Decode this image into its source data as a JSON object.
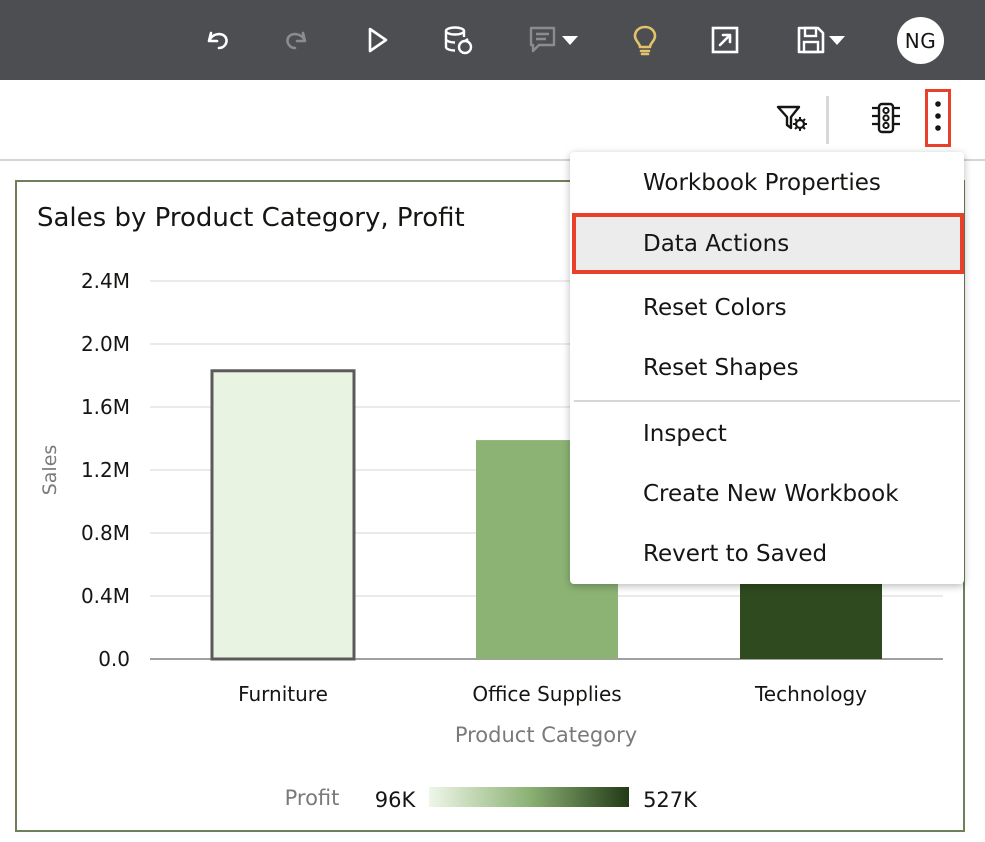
{
  "toolbar": {
    "icons": [
      "undo-icon",
      "redo-icon",
      "play-icon",
      "data-refresh-icon",
      "comment-icon",
      "lightbulb-icon",
      "export-icon",
      "save-icon"
    ],
    "avatar_initials": "NG",
    "colors": {
      "background": "#4c4e52",
      "icon": "#ffffff",
      "disabled_icon": "#8a8c90",
      "lightbulb": "#e2c26b"
    }
  },
  "subtoolbar": {
    "icons": [
      "filter-settings-icon",
      "traffic-light-icon",
      "kebab-menu-icon"
    ]
  },
  "visualization": {
    "title": "Sales by Product Category, Profit"
  },
  "chart_data": {
    "type": "bar",
    "title": "Sales by Product Category, Profit",
    "categories": [
      "Furniture",
      "Office Supplies",
      "Technology"
    ],
    "values": [
      1830000,
      1390000,
      1370000
    ],
    "color_values": [
      96000,
      250000,
      527000
    ],
    "ylabel": "Sales",
    "xlabel": "Product Category",
    "ylim": [
      0,
      2400000
    ],
    "yticks": [
      "0.0",
      "0.4M",
      "0.8M",
      "1.2M",
      "1.6M",
      "2.0M",
      "2.4M"
    ],
    "ytick_values": [
      0,
      400000,
      800000,
      1200000,
      1600000,
      2000000,
      2400000
    ],
    "legend": {
      "label": "Profit",
      "min": "96K",
      "max": "527K",
      "position": "bottom"
    },
    "bar_colors": [
      "#e9f3e2",
      "#8cb274",
      "#2e4a1e"
    ],
    "grid": true
  },
  "menu": {
    "items": [
      {
        "label": "Workbook Properties"
      },
      {
        "label": "Data Actions"
      },
      {
        "label": "Reset Colors"
      },
      {
        "label": "Reset Shapes"
      },
      {
        "label": "Inspect"
      },
      {
        "label": "Create New Workbook"
      },
      {
        "label": "Revert to Saved"
      }
    ],
    "highlighted": "Data Actions",
    "highlight_color": "#e8402a"
  }
}
